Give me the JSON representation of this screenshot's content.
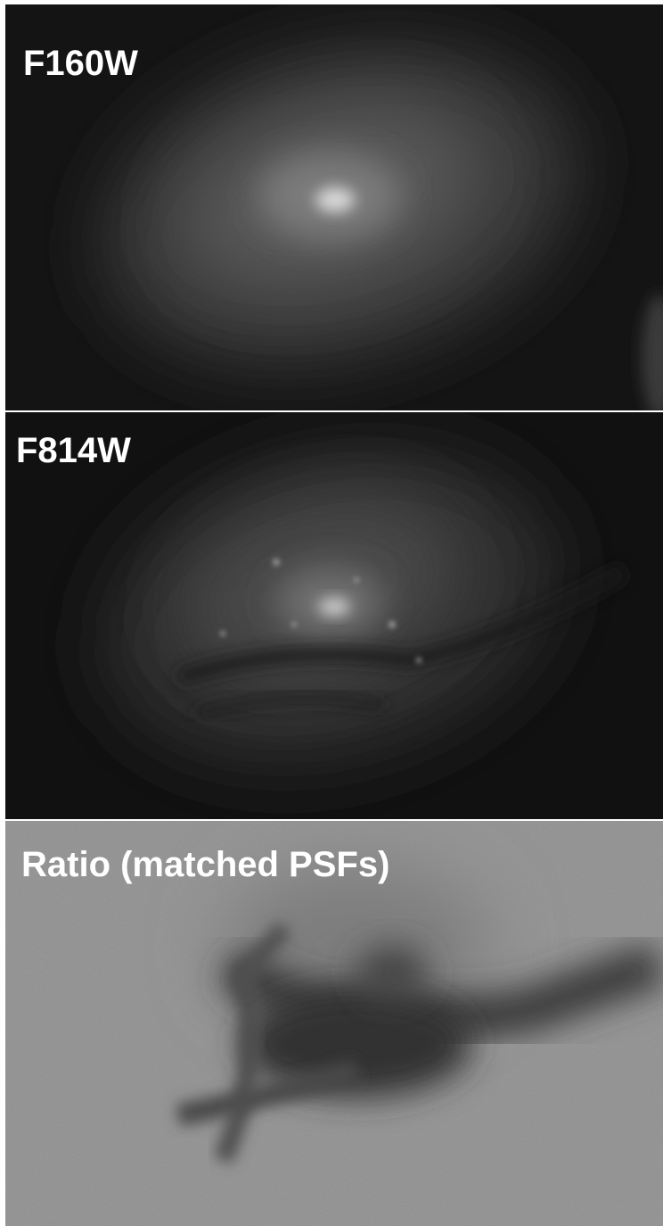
{
  "panels": [
    {
      "label": "F160W"
    },
    {
      "label": "F814W"
    },
    {
      "label": "Ratio (matched PSFs)"
    }
  ]
}
